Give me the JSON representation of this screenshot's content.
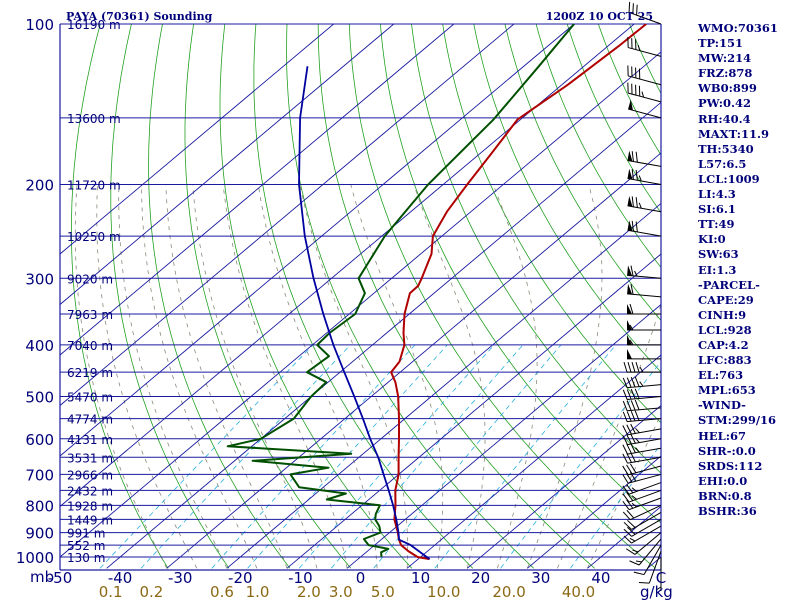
{
  "header": {
    "station_title": "PAYA (70361) Sounding",
    "time_title": "1200Z 10 OCT 25"
  },
  "indices": [
    "WMO:70361",
    "TP:151",
    "MW:214",
    "FRZ:878",
    "WB0:899",
    "PW:0.42",
    "RH:40.4",
    "MAXT:11.9",
    "TH:5340",
    "L57:6.5",
    "LCL:1009",
    "LI:4.3",
    "SI:6.1",
    "TT:49",
    "KI:0",
    "SW:63",
    "EI:1.3",
    "-PARCEL-",
    "CAPE:29",
    "CINH:9",
    "LCL:928",
    "CAP:4.2",
    "LFC:883",
    "EL:763",
    "MPL:653",
    "-WIND-",
    "STM:299/16",
    "HEL:67",
    "SHR-:0.0",
    "SRDS:112",
    "EHI:0.0",
    "BRN:0.8",
    "BSHR:36"
  ],
  "colors": {
    "isobar": "#1a1aa0",
    "isotherm": "#1a1aa0",
    "dry_adiabat": "#22a022",
    "moist_adiabat": "#8a8a7a",
    "mixing_ratio": "#2ab0e0",
    "temperature": "#b00000",
    "dewpoint": "#005000",
    "parcel": "#0000a0",
    "wind_barb": "#000000",
    "text": "#00007a",
    "mixing_label": "#8b6914"
  },
  "chart_data": {
    "type": "line",
    "diagram": "skew-T log-P",
    "title": "PAYA (70361) Sounding",
    "subtitle": "1200Z 10 OCT 25",
    "pressure_unit": "mb",
    "mixing_ratio_unit": "g/kg",
    "ylim_mb": [
      1000,
      100
    ],
    "xlim_C": [
      -50,
      50
    ],
    "pressure_ticks": [
      {
        "p": 100,
        "label": "100"
      },
      {
        "p": 200,
        "label": "200"
      },
      {
        "p": 300,
        "label": "300"
      },
      {
        "p": 400,
        "label": "400"
      },
      {
        "p": 500,
        "label": "500"
      },
      {
        "p": 600,
        "label": "600"
      },
      {
        "p": 700,
        "label": "700"
      },
      {
        "p": 800,
        "label": "800"
      },
      {
        "p": 900,
        "label": "900"
      },
      {
        "p": 1000,
        "label": "1000"
      }
    ],
    "height_labels": [
      {
        "p": 100,
        "label": "16190 m"
      },
      {
        "p": 150,
        "label": "13600 m"
      },
      {
        "p": 200,
        "label": "11720 m"
      },
      {
        "p": 250,
        "label": "10250 m"
      },
      {
        "p": 300,
        "label": "9020 m"
      },
      {
        "p": 350,
        "label": "7963 m"
      },
      {
        "p": 400,
        "label": "7040 m"
      },
      {
        "p": 450,
        "label": "6219 m"
      },
      {
        "p": 500,
        "label": "5470 m"
      },
      {
        "p": 550,
        "label": "4774 m"
      },
      {
        "p": 600,
        "label": "4131 m"
      },
      {
        "p": 650,
        "label": "3531 m"
      },
      {
        "p": 700,
        "label": "2966 m"
      },
      {
        "p": 750,
        "label": "2432 m"
      },
      {
        "p": 800,
        "label": "1928 m"
      },
      {
        "p": 850,
        "label": "1449 m"
      },
      {
        "p": 900,
        "label": "991 m"
      },
      {
        "p": 950,
        "label": "552 m"
      },
      {
        "p": 1000,
        "label": "130 m"
      }
    ],
    "temperature_ticks": [
      {
        "t": -50,
        "label": "-50"
      },
      {
        "t": -40,
        "label": "-40"
      },
      {
        "t": -30,
        "label": "-30"
      },
      {
        "t": -20,
        "label": "-20"
      },
      {
        "t": -10,
        "label": "-10"
      },
      {
        "t": 0,
        "label": "0"
      },
      {
        "t": 10,
        "label": "10"
      },
      {
        "t": 20,
        "label": "20"
      },
      {
        "t": 30,
        "label": "30"
      },
      {
        "t": 40,
        "label": "40"
      },
      {
        "t": 50,
        "label": "C"
      }
    ],
    "mixing_ratio_ticks": [
      {
        "w": 0.1,
        "label": "0.1"
      },
      {
        "w": 0.2,
        "label": "0.2"
      },
      {
        "w": 0.6,
        "label": "0.6"
      },
      {
        "w": 1.0,
        "label": "1.0"
      },
      {
        "w": 2.0,
        "label": "2.0"
      },
      {
        "w": 3.0,
        "label": "3.0"
      },
      {
        "w": 5.0,
        "label": "5.0"
      },
      {
        "w": 10.0,
        "label": "10.0"
      },
      {
        "w": 20.0,
        "label": "20.0"
      },
      {
        "w": 40.0,
        "label": "40.0"
      }
    ],
    "series": [
      {
        "key": "temperature",
        "points": [
          {
            "p": 1009,
            "t": 11.9
          },
          {
            "p": 1000,
            "t": 9.5
          },
          {
            "p": 975,
            "t": 6.8
          },
          {
            "p": 950,
            "t": 4.4
          },
          {
            "p": 925,
            "t": 2.8
          },
          {
            "p": 900,
            "t": 1.4
          },
          {
            "p": 850,
            "t": -1.8
          },
          {
            "p": 800,
            "t": -4.4
          },
          {
            "p": 750,
            "t": -7.4
          },
          {
            "p": 700,
            "t": -10.0
          },
          {
            "p": 650,
            "t": -13.4
          },
          {
            "p": 600,
            "t": -17.0
          },
          {
            "p": 550,
            "t": -21.0
          },
          {
            "p": 500,
            "t": -25.5
          },
          {
            "p": 470,
            "t": -28.8
          },
          {
            "p": 450,
            "t": -31.5
          },
          {
            "p": 430,
            "t": -32.2
          },
          {
            "p": 400,
            "t": -34.7
          },
          {
            "p": 380,
            "t": -37.2
          },
          {
            "p": 350,
            "t": -40.8
          },
          {
            "p": 320,
            "t": -44.0
          },
          {
            "p": 310,
            "t": -44.1
          },
          {
            "p": 300,
            "t": -45.0
          },
          {
            "p": 270,
            "t": -48.2
          },
          {
            "p": 250,
            "t": -51.5
          },
          {
            "p": 225,
            "t": -54.0
          },
          {
            "p": 200,
            "t": -56.0
          },
          {
            "p": 175,
            "t": -58.1
          },
          {
            "p": 151,
            "t": -60.5
          },
          {
            "p": 130,
            "t": -59.0
          },
          {
            "p": 110,
            "t": -58.2
          },
          {
            "p": 100,
            "t": -58.0
          }
        ]
      },
      {
        "key": "dewpoint",
        "points": [
          {
            "p": 1000,
            "t": 3.5
          },
          {
            "p": 980,
            "t": 2.5
          },
          {
            "p": 965,
            "t": 3.0
          },
          {
            "p": 950,
            "t": -1.0
          },
          {
            "p": 925,
            "t": -3.0
          },
          {
            "p": 900,
            "t": -1.5
          },
          {
            "p": 875,
            "t": -3.0
          },
          {
            "p": 850,
            "t": -5.0
          },
          {
            "p": 830,
            "t": -6.0
          },
          {
            "p": 800,
            "t": -7.0
          },
          {
            "p": 780,
            "t": -17.0
          },
          {
            "p": 760,
            "t": -15.0
          },
          {
            "p": 740,
            "t": -24.0
          },
          {
            "p": 700,
            "t": -28.0
          },
          {
            "p": 680,
            "t": -23.0
          },
          {
            "p": 660,
            "t": -37.0
          },
          {
            "p": 640,
            "t": -22.0
          },
          {
            "p": 620,
            "t": -44.0
          },
          {
            "p": 600,
            "t": -40.0
          },
          {
            "p": 550,
            "t": -38.5
          },
          {
            "p": 500,
            "t": -40.0
          },
          {
            "p": 470,
            "t": -40.3
          },
          {
            "p": 450,
            "t": -45.5
          },
          {
            "p": 420,
            "t": -45.0
          },
          {
            "p": 400,
            "t": -49.2
          },
          {
            "p": 380,
            "t": -49.5
          },
          {
            "p": 350,
            "t": -49.0
          },
          {
            "p": 320,
            "t": -51.5
          },
          {
            "p": 300,
            "t": -55.5
          },
          {
            "p": 250,
            "t": -59.5
          },
          {
            "p": 200,
            "t": -62.5
          },
          {
            "p": 151,
            "t": -64.5
          },
          {
            "p": 120,
            "t": -67.5
          },
          {
            "p": 100,
            "t": -70.0
          }
        ]
      },
      {
        "key": "parcel",
        "points": [
          {
            "p": 1009,
            "t": 11.9
          },
          {
            "p": 950,
            "t": 6.0
          },
          {
            "p": 928,
            "t": 3.0
          },
          {
            "p": 900,
            "t": 1.5
          },
          {
            "p": 850,
            "t": -1.5
          },
          {
            "p": 800,
            "t": -4.8
          },
          {
            "p": 750,
            "t": -8.5
          },
          {
            "p": 700,
            "t": -12.5
          },
          {
            "p": 650,
            "t": -16.8
          },
          {
            "p": 600,
            "t": -21.8
          },
          {
            "p": 550,
            "t": -27.0
          },
          {
            "p": 500,
            "t": -32.8
          },
          {
            "p": 450,
            "t": -39.3
          },
          {
            "p": 400,
            "t": -46.5
          },
          {
            "p": 350,
            "t": -54.3
          },
          {
            "p": 300,
            "t": -63.0
          },
          {
            "p": 250,
            "t": -72.8
          },
          {
            "p": 200,
            "t": -84.0
          },
          {
            "p": 150,
            "t": -97.0
          },
          {
            "p": 120,
            "t": -106.0
          }
        ]
      }
    ],
    "wind_barbs": [
      {
        "p": 1000,
        "dir": 180,
        "spd": 5
      },
      {
        "p": 975,
        "dir": 200,
        "spd": 10
      },
      {
        "p": 950,
        "dir": 210,
        "spd": 10
      },
      {
        "p": 925,
        "dir": 220,
        "spd": 15
      },
      {
        "p": 900,
        "dir": 230,
        "spd": 15
      },
      {
        "p": 875,
        "dir": 240,
        "spd": 15
      },
      {
        "p": 850,
        "dir": 240,
        "spd": 20
      },
      {
        "p": 825,
        "dir": 240,
        "spd": 20
      },
      {
        "p": 800,
        "dir": 245,
        "spd": 20
      },
      {
        "p": 775,
        "dir": 250,
        "spd": 25
      },
      {
        "p": 750,
        "dir": 250,
        "spd": 25
      },
      {
        "p": 725,
        "dir": 250,
        "spd": 25
      },
      {
        "p": 700,
        "dir": 255,
        "spd": 30
      },
      {
        "p": 675,
        "dir": 255,
        "spd": 30
      },
      {
        "p": 650,
        "dir": 260,
        "spd": 30
      },
      {
        "p": 625,
        "dir": 260,
        "spd": 35
      },
      {
        "p": 600,
        "dir": 260,
        "spd": 35
      },
      {
        "p": 575,
        "dir": 260,
        "spd": 35
      },
      {
        "p": 550,
        "dir": 265,
        "spd": 40
      },
      {
        "p": 525,
        "dir": 265,
        "spd": 40
      },
      {
        "p": 500,
        "dir": 265,
        "spd": 40
      },
      {
        "p": 475,
        "dir": 265,
        "spd": 45
      },
      {
        "p": 450,
        "dir": 270,
        "spd": 45
      },
      {
        "p": 425,
        "dir": 270,
        "spd": 50
      },
      {
        "p": 400,
        "dir": 270,
        "spd": 55
      },
      {
        "p": 375,
        "dir": 270,
        "spd": 55
      },
      {
        "p": 350,
        "dir": 270,
        "spd": 60
      },
      {
        "p": 325,
        "dir": 275,
        "spd": 60
      },
      {
        "p": 300,
        "dir": 275,
        "spd": 65
      },
      {
        "p": 250,
        "dir": 280,
        "spd": 70
      },
      {
        "p": 225,
        "dir": 280,
        "spd": 75
      },
      {
        "p": 200,
        "dir": 280,
        "spd": 75
      },
      {
        "p": 185,
        "dir": 280,
        "spd": 70
      },
      {
        "p": 150,
        "dir": 285,
        "spd": 50
      },
      {
        "p": 140,
        "dir": 285,
        "spd": 45
      },
      {
        "p": 130,
        "dir": 285,
        "spd": 40
      },
      {
        "p": 115,
        "dir": 285,
        "spd": 35
      },
      {
        "p": 100,
        "dir": 290,
        "spd": 30
      }
    ]
  }
}
